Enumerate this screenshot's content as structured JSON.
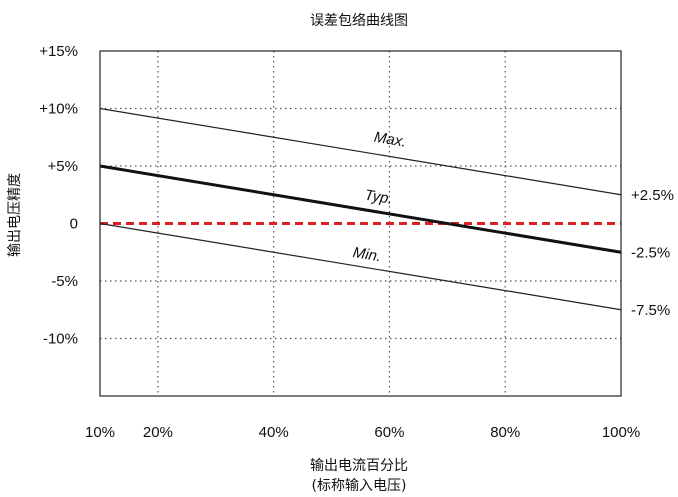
{
  "chart_data": {
    "type": "line",
    "title": "误差包络曲线图",
    "xlabel_line1": "输出电流百分比",
    "xlabel_line2": "(标称输入电压)",
    "ylabel": "输出电压精度",
    "x_ticks": [
      {
        "value": 10,
        "label": "10%"
      },
      {
        "value": 20,
        "label": "20%"
      },
      {
        "value": 40,
        "label": "40%"
      },
      {
        "value": 60,
        "label": "60%"
      },
      {
        "value": 80,
        "label": "80%"
      },
      {
        "value": 100,
        "label": "100%"
      }
    ],
    "y_ticks": [
      {
        "value": 15,
        "label": "+15%"
      },
      {
        "value": 10,
        "label": "+10%"
      },
      {
        "value": 5,
        "label": "+5%"
      },
      {
        "value": 0,
        "label": "0"
      },
      {
        "value": -5,
        "label": "-5%"
      },
      {
        "value": -10,
        "label": "-10%"
      }
    ],
    "xlim": [
      10,
      100
    ],
    "ylim": [
      -15,
      15
    ],
    "grid": true,
    "series": [
      {
        "name": "Max.",
        "x": [
          10,
          100
        ],
        "y": [
          10,
          2.5
        ],
        "color": "#222222",
        "style": "thin",
        "label_at": [
          60,
          6.9
        ],
        "end_label": "+2.5%"
      },
      {
        "name": "Typ.",
        "x": [
          10,
          100
        ],
        "y": [
          5,
          -2.5
        ],
        "color": "#111111",
        "style": "thick",
        "label_at": [
          58,
          1.9
        ],
        "end_label": "-2.5%"
      },
      {
        "name": "Min.",
        "x": [
          10,
          100
        ],
        "y": [
          0,
          -7.5
        ],
        "color": "#222222",
        "style": "thin",
        "label_at": [
          56,
          -3.1
        ],
        "end_label": "-7.5%"
      }
    ],
    "reference_line": {
      "y": 0,
      "color": "#e02020",
      "style": "dashed"
    }
  }
}
